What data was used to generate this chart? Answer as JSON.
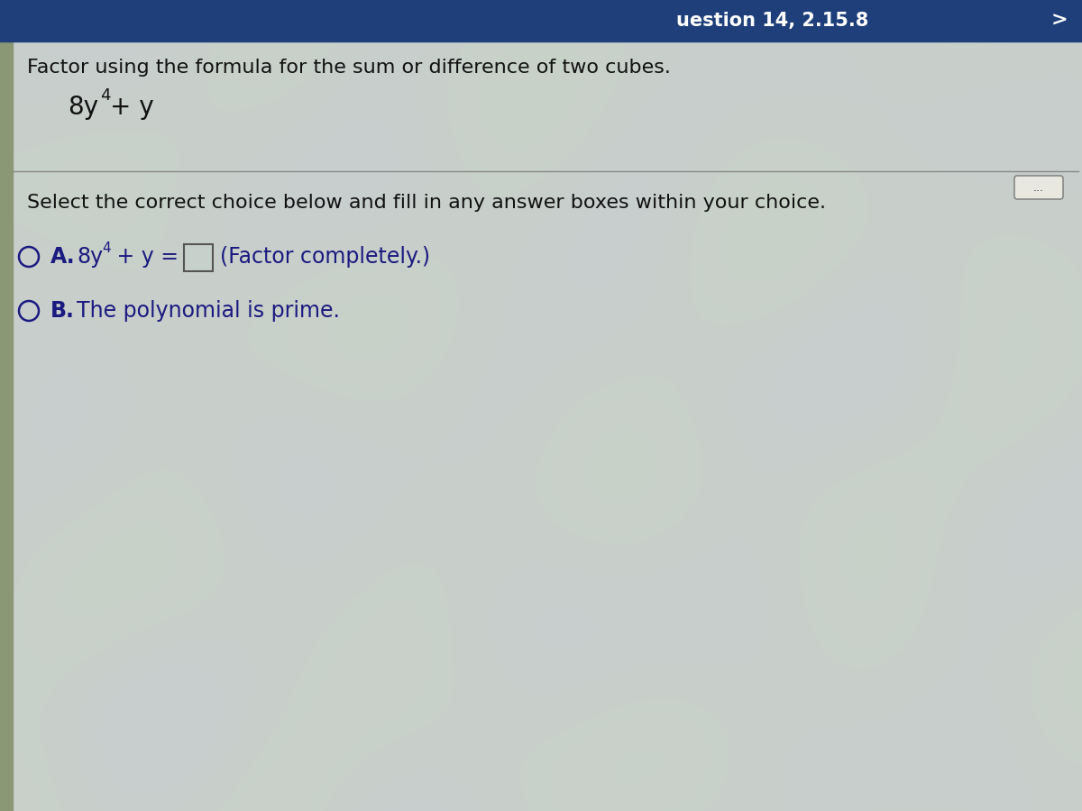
{
  "title_bar_color": "#1e3f7a",
  "title_bar_text": "uestion 14, 2.15.8",
  "bg_base_color": [
    200,
    210,
    200
  ],
  "bg_wave_color1": [
    210,
    200,
    215
  ],
  "bg_wave_color2": [
    185,
    200,
    210
  ],
  "left_strip_color": "#b0b8a8",
  "instruction_text": "Factor using the formula for the sum or difference of two cubes.",
  "select_text": "Select the correct choice below and fill in any answer boxes within your choice.",
  "choice_a_suffix": "(Factor completely.)",
  "choice_b_text": "The polynomial is prime.",
  "dots_button_text": "...",
  "text_color": "#111111",
  "choice_text_color": "#1a1a80",
  "circle_color": "#1a1a80",
  "box_fill_color": "#c8d0cc",
  "box_border_color": "#555555",
  "divider_color": "#888888",
  "font_family": "DejaVu Sans"
}
